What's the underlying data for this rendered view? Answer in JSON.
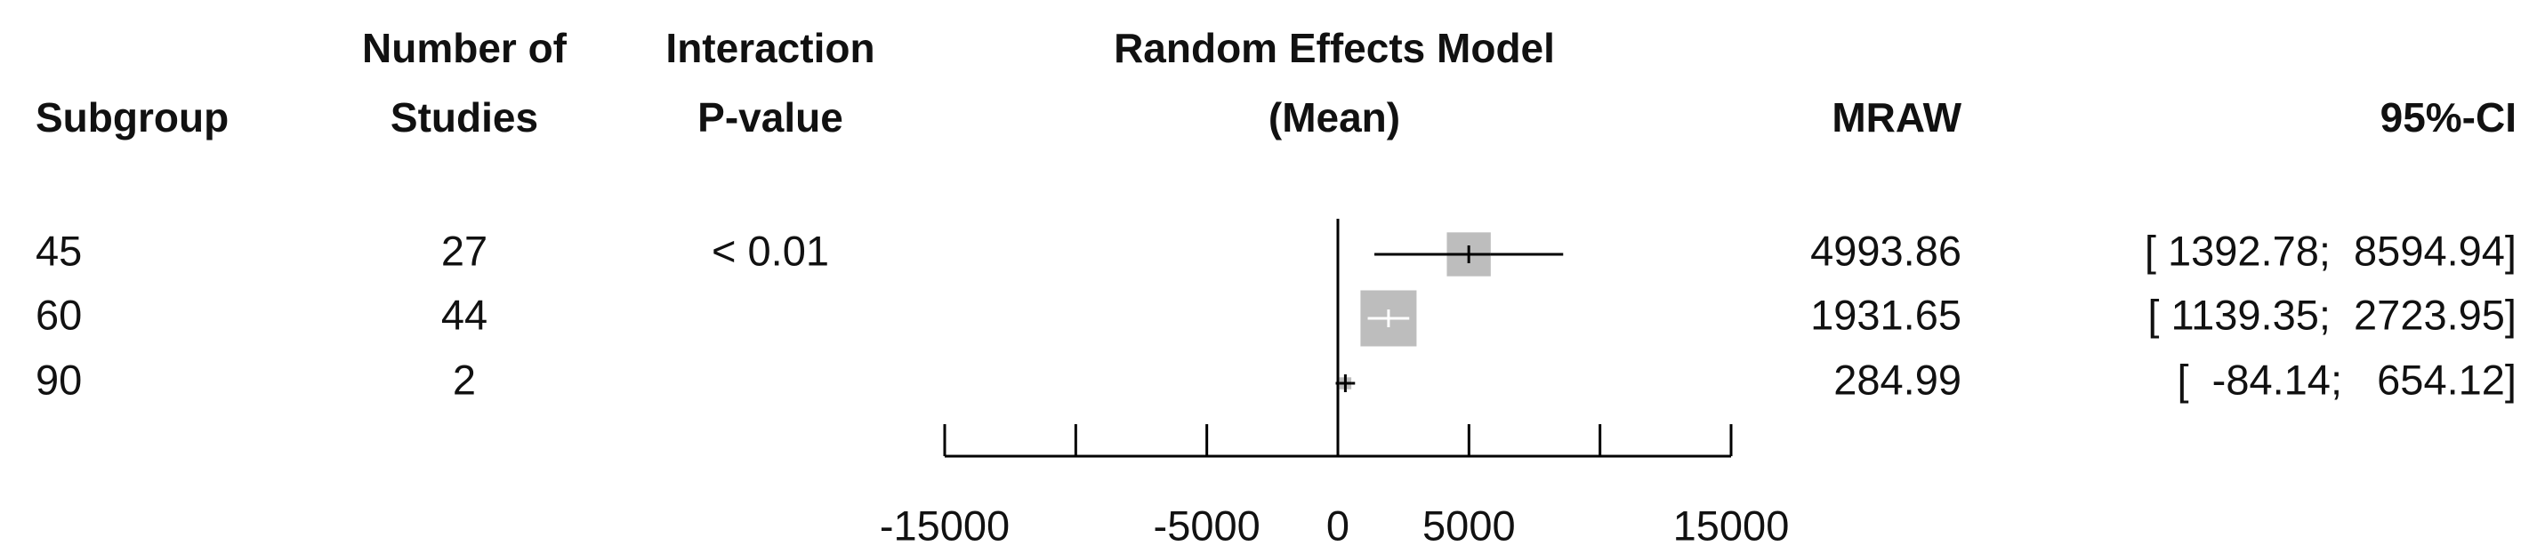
{
  "chart_data": {
    "type": "forest",
    "headers": [
      [
        "Subgroup"
      ],
      [
        "Number of",
        "Studies"
      ],
      [
        "Interaction",
        "P-value"
      ],
      [
        "Random Effects Model",
        "(Mean)"
      ],
      [
        "MRAW"
      ],
      [
        "95%-CI"
      ]
    ],
    "rows": [
      {
        "subgroup": "45",
        "studies": 27,
        "p_value": "< 0.01",
        "mean": 4993.86,
        "lower": 1392.78,
        "upper": 8594.94,
        "ci_label": "[ 1392.78;  8594.94]"
      },
      {
        "subgroup": "60",
        "studies": 44,
        "mean": 1931.65,
        "lower": 1139.35,
        "upper": 2723.95,
        "ci_label": "[ 1139.35;  2723.95]"
      },
      {
        "subgroup": "90",
        "studies": 2,
        "mean": 284.99,
        "lower": -84.14,
        "upper": 654.12,
        "ci_label": "[  -84.14;   654.12]"
      }
    ],
    "xlim": [
      -15000,
      15000
    ],
    "xticks": [
      -15000,
      -5000,
      0,
      5000,
      15000
    ],
    "minor_xticks": [
      -10000,
      10000
    ],
    "reference_line": 0,
    "box_color": "#bdbdbd",
    "line_color": "#000000"
  }
}
